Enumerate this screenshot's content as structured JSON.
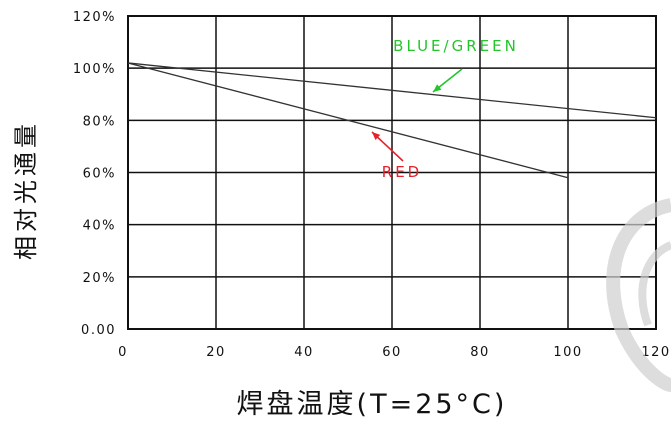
{
  "chart_data": {
    "type": "line",
    "xlabel": "焊盘温度(T=25°C)",
    "ylabel": "相对光通量",
    "xlim": [
      0,
      120
    ],
    "ylim": [
      0,
      120
    ],
    "x_ticks": [
      "0",
      "20",
      "40",
      "60",
      "80",
      "100",
      "120"
    ],
    "y_ticks": [
      "0.00",
      "20%",
      "40%",
      "60%",
      "80%",
      "100%",
      "120%"
    ],
    "grid": true,
    "series": [
      {
        "name": "BLUE/GREEN",
        "color": "#22c52a",
        "x": [
          0,
          120
        ],
        "y": [
          102,
          81
        ]
      },
      {
        "name": "RED",
        "color": "#e8202a",
        "x": [
          0,
          100
        ],
        "y": [
          102,
          58
        ]
      }
    ]
  }
}
